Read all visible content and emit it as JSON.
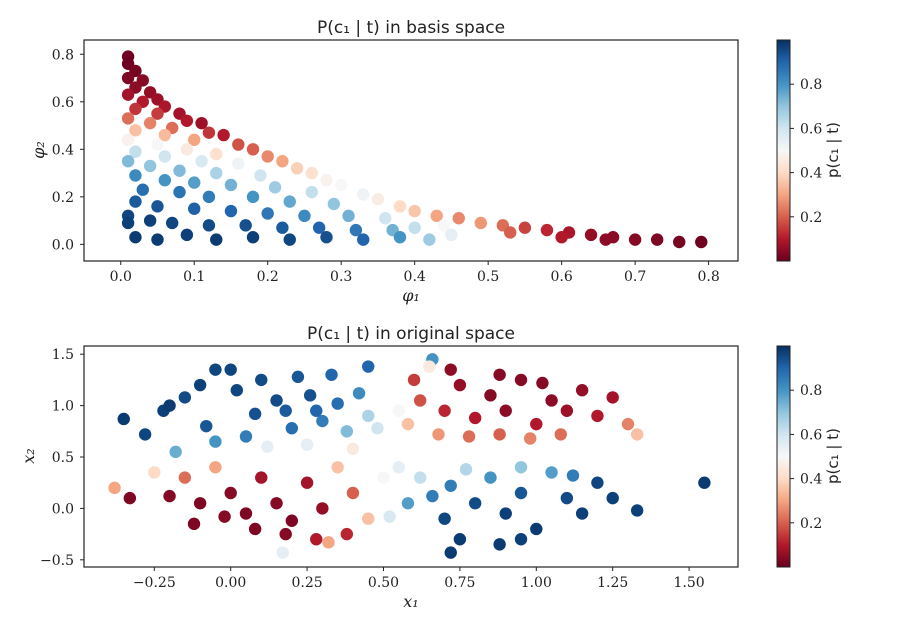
{
  "colorbar": {
    "label": "p(c₁ | t)",
    "ticks": [
      0.2,
      0.4,
      0.6,
      0.8
    ],
    "range": [
      0.0,
      1.0
    ],
    "colormap": "RdBu",
    "colors": [
      "#67001f",
      "#b2182b",
      "#d6604d",
      "#f4a582",
      "#fddbc7",
      "#f7f7f7",
      "#d1e5f0",
      "#92c5de",
      "#4393c3",
      "#2166ac",
      "#053061"
    ]
  },
  "chart_data": [
    {
      "type": "scatter",
      "title": "P(c₁ | t) in basis space",
      "xlabel": "φ₁",
      "ylabel": "φ₂",
      "xlim": [
        -0.05,
        0.84
      ],
      "ylim": [
        -0.07,
        0.86
      ],
      "xticks": [
        0.0,
        0.1,
        0.2,
        0.3,
        0.4,
        0.5,
        0.6,
        0.7,
        0.8
      ],
      "yticks": [
        0.0,
        0.2,
        0.4,
        0.6,
        0.8
      ],
      "grid": false,
      "colorbar": true,
      "points": [
        {
          "x": 0.01,
          "y": 0.79,
          "c": 0.01
        },
        {
          "x": 0.01,
          "y": 0.76,
          "c": 0.01
        },
        {
          "x": 0.02,
          "y": 0.73,
          "c": 0.02
        },
        {
          "x": 0.01,
          "y": 0.7,
          "c": 0.03
        },
        {
          "x": 0.03,
          "y": 0.69,
          "c": 0.04
        },
        {
          "x": 0.02,
          "y": 0.66,
          "c": 0.05
        },
        {
          "x": 0.04,
          "y": 0.64,
          "c": 0.06
        },
        {
          "x": 0.01,
          "y": 0.63,
          "c": 0.08
        },
        {
          "x": 0.05,
          "y": 0.61,
          "c": 0.07
        },
        {
          "x": 0.03,
          "y": 0.6,
          "c": 0.1
        },
        {
          "x": 0.06,
          "y": 0.58,
          "c": 0.09
        },
        {
          "x": 0.02,
          "y": 0.57,
          "c": 0.14
        },
        {
          "x": 0.08,
          "y": 0.55,
          "c": 0.08
        },
        {
          "x": 0.05,
          "y": 0.55,
          "c": 0.15
        },
        {
          "x": 0.09,
          "y": 0.52,
          "c": 0.1
        },
        {
          "x": 0.11,
          "y": 0.51,
          "c": 0.07
        },
        {
          "x": 0.01,
          "y": 0.53,
          "c": 0.22
        },
        {
          "x": 0.04,
          "y": 0.51,
          "c": 0.25
        },
        {
          "x": 0.07,
          "y": 0.49,
          "c": 0.22
        },
        {
          "x": 0.12,
          "y": 0.47,
          "c": 0.14
        },
        {
          "x": 0.14,
          "y": 0.46,
          "c": 0.1
        },
        {
          "x": 0.02,
          "y": 0.48,
          "c": 0.35
        },
        {
          "x": 0.06,
          "y": 0.46,
          "c": 0.34
        },
        {
          "x": 0.1,
          "y": 0.44,
          "c": 0.3
        },
        {
          "x": 0.16,
          "y": 0.42,
          "c": 0.18
        },
        {
          "x": 0.18,
          "y": 0.4,
          "c": 0.2
        },
        {
          "x": 0.01,
          "y": 0.44,
          "c": 0.48
        },
        {
          "x": 0.05,
          "y": 0.42,
          "c": 0.5
        },
        {
          "x": 0.09,
          "y": 0.4,
          "c": 0.45
        },
        {
          "x": 0.13,
          "y": 0.38,
          "c": 0.42
        },
        {
          "x": 0.2,
          "y": 0.37,
          "c": 0.26
        },
        {
          "x": 0.22,
          "y": 0.35,
          "c": 0.3
        },
        {
          "x": 0.02,
          "y": 0.39,
          "c": 0.62
        },
        {
          "x": 0.06,
          "y": 0.37,
          "c": 0.6
        },
        {
          "x": 0.11,
          "y": 0.35,
          "c": 0.58
        },
        {
          "x": 0.16,
          "y": 0.34,
          "c": 0.52
        },
        {
          "x": 0.24,
          "y": 0.32,
          "c": 0.38
        },
        {
          "x": 0.26,
          "y": 0.3,
          "c": 0.42
        },
        {
          "x": 0.01,
          "y": 0.35,
          "c": 0.72
        },
        {
          "x": 0.04,
          "y": 0.33,
          "c": 0.7
        },
        {
          "x": 0.08,
          "y": 0.31,
          "c": 0.72
        },
        {
          "x": 0.13,
          "y": 0.3,
          "c": 0.66
        },
        {
          "x": 0.19,
          "y": 0.29,
          "c": 0.6
        },
        {
          "x": 0.28,
          "y": 0.27,
          "c": 0.48
        },
        {
          "x": 0.3,
          "y": 0.25,
          "c": 0.5
        },
        {
          "x": 0.02,
          "y": 0.29,
          "c": 0.82
        },
        {
          "x": 0.06,
          "y": 0.27,
          "c": 0.8
        },
        {
          "x": 0.1,
          "y": 0.26,
          "c": 0.78
        },
        {
          "x": 0.15,
          "y": 0.25,
          "c": 0.74
        },
        {
          "x": 0.21,
          "y": 0.24,
          "c": 0.68
        },
        {
          "x": 0.26,
          "y": 0.22,
          "c": 0.62
        },
        {
          "x": 0.33,
          "y": 0.21,
          "c": 0.52
        },
        {
          "x": 0.35,
          "y": 0.19,
          "c": 0.46
        },
        {
          "x": 0.03,
          "y": 0.23,
          "c": 0.88
        },
        {
          "x": 0.08,
          "y": 0.22,
          "c": 0.87
        },
        {
          "x": 0.12,
          "y": 0.2,
          "c": 0.85
        },
        {
          "x": 0.18,
          "y": 0.2,
          "c": 0.8
        },
        {
          "x": 0.23,
          "y": 0.18,
          "c": 0.76
        },
        {
          "x": 0.29,
          "y": 0.17,
          "c": 0.7
        },
        {
          "x": 0.38,
          "y": 0.16,
          "c": 0.4
        },
        {
          "x": 0.4,
          "y": 0.14,
          "c": 0.36
        },
        {
          "x": 0.02,
          "y": 0.18,
          "c": 0.92
        },
        {
          "x": 0.05,
          "y": 0.16,
          "c": 0.93
        },
        {
          "x": 0.1,
          "y": 0.15,
          "c": 0.91
        },
        {
          "x": 0.15,
          "y": 0.14,
          "c": 0.9
        },
        {
          "x": 0.2,
          "y": 0.13,
          "c": 0.86
        },
        {
          "x": 0.25,
          "y": 0.12,
          "c": 0.82
        },
        {
          "x": 0.31,
          "y": 0.12,
          "c": 0.74
        },
        {
          "x": 0.36,
          "y": 0.11,
          "c": 0.6
        },
        {
          "x": 0.43,
          "y": 0.12,
          "c": 0.3
        },
        {
          "x": 0.46,
          "y": 0.11,
          "c": 0.26
        },
        {
          "x": 0.01,
          "y": 0.12,
          "c": 0.96
        },
        {
          "x": 0.04,
          "y": 0.1,
          "c": 0.97
        },
        {
          "x": 0.07,
          "y": 0.09,
          "c": 0.96
        },
        {
          "x": 0.12,
          "y": 0.08,
          "c": 0.95
        },
        {
          "x": 0.17,
          "y": 0.08,
          "c": 0.94
        },
        {
          "x": 0.22,
          "y": 0.07,
          "c": 0.92
        },
        {
          "x": 0.27,
          "y": 0.07,
          "c": 0.9
        },
        {
          "x": 0.32,
          "y": 0.06,
          "c": 0.86
        },
        {
          "x": 0.37,
          "y": 0.06,
          "c": 0.74
        },
        {
          "x": 0.4,
          "y": 0.07,
          "c": 0.62
        },
        {
          "x": 0.44,
          "y": 0.08,
          "c": 0.5
        },
        {
          "x": 0.49,
          "y": 0.09,
          "c": 0.28
        },
        {
          "x": 0.52,
          "y": 0.08,
          "c": 0.22
        },
        {
          "x": 0.01,
          "y": 0.09,
          "c": 0.97
        },
        {
          "x": 0.02,
          "y": 0.03,
          "c": 0.98
        },
        {
          "x": 0.05,
          "y": 0.02,
          "c": 0.98
        },
        {
          "x": 0.09,
          "y": 0.04,
          "c": 0.97
        },
        {
          "x": 0.13,
          "y": 0.02,
          "c": 0.98
        },
        {
          "x": 0.18,
          "y": 0.03,
          "c": 0.97
        },
        {
          "x": 0.23,
          "y": 0.02,
          "c": 0.96
        },
        {
          "x": 0.28,
          "y": 0.03,
          "c": 0.94
        },
        {
          "x": 0.33,
          "y": 0.02,
          "c": 0.9
        },
        {
          "x": 0.38,
          "y": 0.03,
          "c": 0.8
        },
        {
          "x": 0.42,
          "y": 0.02,
          "c": 0.68
        },
        {
          "x": 0.45,
          "y": 0.04,
          "c": 0.55
        },
        {
          "x": 0.55,
          "y": 0.07,
          "c": 0.16
        },
        {
          "x": 0.58,
          "y": 0.06,
          "c": 0.12
        },
        {
          "x": 0.61,
          "y": 0.05,
          "c": 0.09
        },
        {
          "x": 0.64,
          "y": 0.04,
          "c": 0.06
        },
        {
          "x": 0.67,
          "y": 0.03,
          "c": 0.05
        },
        {
          "x": 0.7,
          "y": 0.02,
          "c": 0.04
        },
        {
          "x": 0.73,
          "y": 0.02,
          "c": 0.03
        },
        {
          "x": 0.76,
          "y": 0.01,
          "c": 0.02
        },
        {
          "x": 0.79,
          "y": 0.01,
          "c": 0.01
        },
        {
          "x": 0.53,
          "y": 0.05,
          "c": 0.2
        },
        {
          "x": 0.6,
          "y": 0.03,
          "c": 0.1
        },
        {
          "x": 0.66,
          "y": 0.02,
          "c": 0.05
        }
      ]
    },
    {
      "type": "scatter",
      "title": "P(c₁ | t) in original space",
      "xlabel": "x₁",
      "ylabel": "x₂",
      "xlim": [
        -0.48,
        1.66
      ],
      "ylim": [
        -0.57,
        1.58
      ],
      "xticks": [
        -0.25,
        0.0,
        0.25,
        0.5,
        0.75,
        1.0,
        1.25,
        1.5
      ],
      "yticks": [
        -0.5,
        0.0,
        0.5,
        1.0,
        1.5
      ],
      "grid": false,
      "colorbar": true,
      "points": [
        {
          "x": -0.35,
          "y": 0.87,
          "c": 0.98
        },
        {
          "x": -0.28,
          "y": 0.72,
          "c": 0.96
        },
        {
          "x": -0.22,
          "y": 0.95,
          "c": 0.97
        },
        {
          "x": -0.15,
          "y": 1.08,
          "c": 0.95
        },
        {
          "x": -0.08,
          "y": 0.8,
          "c": 0.93
        },
        {
          "x": 0.02,
          "y": 1.15,
          "c": 0.96
        },
        {
          "x": 0.08,
          "y": 0.92,
          "c": 0.94
        },
        {
          "x": 0.15,
          "y": 1.05,
          "c": 0.95
        },
        {
          "x": 0.2,
          "y": 0.78,
          "c": 0.88
        },
        {
          "x": 0.26,
          "y": 1.1,
          "c": 0.94
        },
        {
          "x": 0.3,
          "y": 0.85,
          "c": 0.85
        },
        {
          "x": 0.35,
          "y": 1.02,
          "c": 0.88
        },
        {
          "x": 0.38,
          "y": 0.75,
          "c": 0.72
        },
        {
          "x": 0.42,
          "y": 1.12,
          "c": 0.82
        },
        {
          "x": 0.45,
          "y": 0.9,
          "c": 0.66
        },
        {
          "x": -0.05,
          "y": 1.35,
          "c": 0.96
        },
        {
          "x": 0.0,
          "y": 1.35,
          "c": 0.96
        },
        {
          "x": 0.1,
          "y": 1.25,
          "c": 0.95
        },
        {
          "x": 0.22,
          "y": 1.28,
          "c": 0.93
        },
        {
          "x": 0.33,
          "y": 1.3,
          "c": 0.9
        },
        {
          "x": 0.45,
          "y": 1.38,
          "c": 0.9
        },
        {
          "x": -0.1,
          "y": 1.2,
          "c": 0.97
        },
        {
          "x": 0.05,
          "y": 0.7,
          "c": 0.85
        },
        {
          "x": 0.12,
          "y": 0.6,
          "c": 0.55
        },
        {
          "x": -0.18,
          "y": 0.55,
          "c": 0.75
        },
        {
          "x": -0.05,
          "y": 0.65,
          "c": 0.8
        },
        {
          "x": 0.25,
          "y": 0.62,
          "c": 0.55
        },
        {
          "x": 0.4,
          "y": 0.58,
          "c": 0.45
        },
        {
          "x": 0.18,
          "y": 0.95,
          "c": 0.92
        },
        {
          "x": 0.28,
          "y": 0.95,
          "c": 0.9
        },
        {
          "x": -0.2,
          "y": 1.0,
          "c": 0.98
        },
        {
          "x": 0.48,
          "y": 0.78,
          "c": 0.6
        },
        {
          "x": 0.66,
          "y": 1.45,
          "c": 0.8
        },
        {
          "x": 0.55,
          "y": 0.95,
          "c": 0.5
        },
        {
          "x": 0.58,
          "y": 0.82,
          "c": 0.35
        },
        {
          "x": 0.62,
          "y": 1.05,
          "c": 0.18
        },
        {
          "x": 0.7,
          "y": 0.95,
          "c": 0.12
        },
        {
          "x": 0.75,
          "y": 1.2,
          "c": 0.06
        },
        {
          "x": 0.8,
          "y": 0.88,
          "c": 0.1
        },
        {
          "x": 0.85,
          "y": 1.1,
          "c": 0.04
        },
        {
          "x": 0.9,
          "y": 0.95,
          "c": 0.05
        },
        {
          "x": 0.95,
          "y": 1.25,
          "c": 0.04
        },
        {
          "x": 1.0,
          "y": 0.82,
          "c": 0.1
        },
        {
          "x": 1.05,
          "y": 1.05,
          "c": 0.05
        },
        {
          "x": 1.1,
          "y": 0.95,
          "c": 0.07
        },
        {
          "x": 1.15,
          "y": 1.15,
          "c": 0.06
        },
        {
          "x": 1.2,
          "y": 0.9,
          "c": 0.1
        },
        {
          "x": 1.25,
          "y": 1.08,
          "c": 0.08
        },
        {
          "x": 1.3,
          "y": 0.82,
          "c": 0.25
        },
        {
          "x": 1.33,
          "y": 0.72,
          "c": 0.35
        },
        {
          "x": 0.68,
          "y": 0.72,
          "c": 0.28
        },
        {
          "x": 0.78,
          "y": 0.7,
          "c": 0.22
        },
        {
          "x": 0.88,
          "y": 0.72,
          "c": 0.2
        },
        {
          "x": 0.98,
          "y": 0.68,
          "c": 0.25
        },
        {
          "x": 1.08,
          "y": 0.72,
          "c": 0.22
        },
        {
          "x": 0.72,
          "y": 1.35,
          "c": 0.05
        },
        {
          "x": 0.88,
          "y": 1.3,
          "c": 0.04
        },
        {
          "x": 1.02,
          "y": 1.22,
          "c": 0.04
        },
        {
          "x": 0.6,
          "y": 1.25,
          "c": 0.15
        },
        {
          "x": 0.65,
          "y": 1.38,
          "c": 0.45
        },
        {
          "x": -0.38,
          "y": 0.2,
          "c": 0.3
        },
        {
          "x": -0.33,
          "y": 0.1,
          "c": 0.03
        },
        {
          "x": -0.25,
          "y": 0.35,
          "c": 0.4
        },
        {
          "x": -0.2,
          "y": 0.12,
          "c": 0.04
        },
        {
          "x": -0.15,
          "y": 0.3,
          "c": 0.22
        },
        {
          "x": -0.1,
          "y": 0.05,
          "c": 0.03
        },
        {
          "x": -0.05,
          "y": 0.4,
          "c": 0.3
        },
        {
          "x": 0.0,
          "y": 0.15,
          "c": 0.04
        },
        {
          "x": 0.05,
          "y": -0.05,
          "c": 0.03
        },
        {
          "x": 0.1,
          "y": 0.3,
          "c": 0.08
        },
        {
          "x": 0.15,
          "y": 0.05,
          "c": 0.04
        },
        {
          "x": 0.2,
          "y": -0.12,
          "c": 0.03
        },
        {
          "x": 0.25,
          "y": 0.25,
          "c": 0.08
        },
        {
          "x": 0.3,
          "y": 0.0,
          "c": 0.06
        },
        {
          "x": 0.35,
          "y": 0.4,
          "c": 0.35
        },
        {
          "x": 0.4,
          "y": 0.15,
          "c": 0.2
        },
        {
          "x": 0.45,
          "y": -0.1,
          "c": 0.35
        },
        {
          "x": 0.5,
          "y": 0.3,
          "c": 0.5
        },
        {
          "x": -0.12,
          "y": -0.15,
          "c": 0.03
        },
        {
          "x": -0.02,
          "y": -0.08,
          "c": 0.04
        },
        {
          "x": 0.08,
          "y": -0.2,
          "c": 0.03
        },
        {
          "x": 0.18,
          "y": -0.25,
          "c": 0.04
        },
        {
          "x": 0.28,
          "y": -0.3,
          "c": 0.1
        },
        {
          "x": 0.38,
          "y": -0.25,
          "c": 0.12
        },
        {
          "x": 0.17,
          "y": -0.43,
          "c": 0.55
        },
        {
          "x": 0.32,
          "y": -0.33,
          "c": 0.3
        },
        {
          "x": 0.52,
          "y": -0.08,
          "c": 0.58
        },
        {
          "x": 0.58,
          "y": 0.05,
          "c": 0.78
        },
        {
          "x": 0.62,
          "y": 0.3,
          "c": 0.62
        },
        {
          "x": 0.66,
          "y": 0.12,
          "c": 0.85
        },
        {
          "x": 0.7,
          "y": -0.1,
          "c": 0.96
        },
        {
          "x": 0.72,
          "y": 0.22,
          "c": 0.85
        },
        {
          "x": 0.75,
          "y": -0.3,
          "c": 0.98
        },
        {
          "x": 0.72,
          "y": -0.43,
          "c": 0.98
        },
        {
          "x": 0.8,
          "y": 0.05,
          "c": 0.95
        },
        {
          "x": 0.85,
          "y": 0.3,
          "c": 0.8
        },
        {
          "x": 0.9,
          "y": -0.05,
          "c": 0.97
        },
        {
          "x": 0.95,
          "y": 0.15,
          "c": 0.93
        },
        {
          "x": 1.0,
          "y": -0.2,
          "c": 0.98
        },
        {
          "x": 1.05,
          "y": 0.35,
          "c": 0.78
        },
        {
          "x": 1.1,
          "y": 0.1,
          "c": 0.95
        },
        {
          "x": 1.15,
          "y": -0.05,
          "c": 0.97
        },
        {
          "x": 1.2,
          "y": 0.25,
          "c": 0.96
        },
        {
          "x": 1.25,
          "y": 0.1,
          "c": 0.97
        },
        {
          "x": 1.33,
          "y": -0.02,
          "c": 0.97
        },
        {
          "x": 1.55,
          "y": 0.25,
          "c": 0.98
        },
        {
          "x": 0.88,
          "y": -0.35,
          "c": 0.98
        },
        {
          "x": 0.95,
          "y": -0.3,
          "c": 0.97
        },
        {
          "x": 1.12,
          "y": 0.32,
          "c": 0.85
        },
        {
          "x": 0.55,
          "y": 0.4,
          "c": 0.55
        },
        {
          "x": 0.77,
          "y": 0.38,
          "c": 0.65
        },
        {
          "x": 0.95,
          "y": 0.4,
          "c": 0.7
        }
      ]
    }
  ]
}
